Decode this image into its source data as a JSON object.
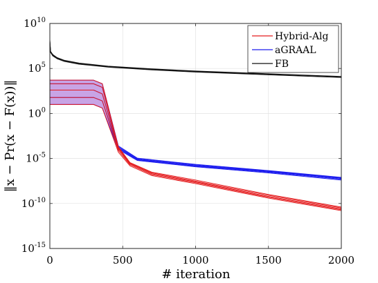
{
  "chart_data": {
    "type": "line",
    "title": "",
    "xlabel": "# iteration",
    "ylabel": "‖x − Pr(x − F(x))‖",
    "xlim": [
      0,
      2000
    ],
    "ylim": [
      1e-15,
      10000000000.0
    ],
    "yscale": "log",
    "grid": true,
    "legend_position": "top-right",
    "x_ticks": [
      0,
      500,
      1000,
      1500,
      2000
    ],
    "x_tick_labels": [
      "0",
      "500",
      "1000",
      "1500",
      "2000"
    ],
    "y_ticks": [
      1e-15,
      1e-10,
      1e-05,
      1,
      100000.0,
      10000000000.0
    ],
    "y_tick_labels": [
      {
        "base": "10",
        "exp": "-15"
      },
      {
        "base": "10",
        "exp": "-10"
      },
      {
        "base": "10",
        "exp": "-5"
      },
      {
        "base": "10",
        "exp": "0"
      },
      {
        "base": "10",
        "exp": "5"
      },
      {
        "base": "10",
        "exp": "10"
      }
    ],
    "series": [
      {
        "name": "Hybrid-Alg",
        "color": "#e41a1c",
        "runs": [
          [
            [
              0,
              10
            ],
            [
              300,
              10
            ],
            [
              360,
              4
            ],
            [
              470,
              5e-05
            ],
            [
              550,
              1.5e-06
            ],
            [
              700,
              1.25e-07
            ],
            [
              1000,
              1.6e-08
            ],
            [
              1500,
              4e-10
            ],
            [
              2000,
              1.6e-11
            ]
          ],
          [
            [
              0,
              60
            ],
            [
              300,
              60
            ],
            [
              360,
              25
            ],
            [
              470,
              8e-05
            ],
            [
              550,
              2e-06
            ],
            [
              700,
              1.6e-07
            ],
            [
              1000,
              2e-08
            ],
            [
              1500,
              5e-10
            ],
            [
              2000,
              2e-11
            ]
          ],
          [
            [
              0,
              400
            ],
            [
              300,
              400
            ],
            [
              360,
              150
            ],
            [
              470,
              0.00012
            ],
            [
              550,
              2.5e-06
            ],
            [
              700,
              2e-07
            ],
            [
              1000,
              2.5e-08
            ],
            [
              1500,
              6e-10
            ],
            [
              2000,
              2.5e-11
            ]
          ],
          [
            [
              0,
              2000
            ],
            [
              300,
              2000
            ],
            [
              360,
              800
            ],
            [
              470,
              0.00016
            ],
            [
              550,
              3e-06
            ],
            [
              700,
              2.5e-07
            ],
            [
              1000,
              3e-08
            ],
            [
              1500,
              8e-10
            ],
            [
              2000,
              3.2e-11
            ]
          ],
          [
            [
              0,
              5000
            ],
            [
              300,
              5000
            ],
            [
              360,
              2000
            ],
            [
              470,
              0.0002
            ],
            [
              550,
              3.5e-06
            ],
            [
              700,
              3e-07
            ],
            [
              1000,
              4e-08
            ],
            [
              1500,
              1e-09
            ],
            [
              2000,
              4e-11
            ]
          ]
        ]
      },
      {
        "name": "aGRAAL",
        "color": "#1a1aee",
        "runs": [
          [
            [
              0,
              10
            ],
            [
              300,
              10
            ],
            [
              360,
              4
            ],
            [
              470,
              0.0001
            ],
            [
              600,
              6e-06
            ],
            [
              1000,
              1.2e-06
            ],
            [
              1500,
              2.5e-07
            ],
            [
              2000,
              4e-08
            ]
          ],
          [
            [
              0,
              60
            ],
            [
              300,
              60
            ],
            [
              360,
              25
            ],
            [
              470,
              0.00013
            ],
            [
              600,
              7e-06
            ],
            [
              1000,
              1.4e-06
            ],
            [
              1500,
              3e-07
            ],
            [
              2000,
              5e-08
            ]
          ],
          [
            [
              0,
              400
            ],
            [
              300,
              400
            ],
            [
              360,
              150
            ],
            [
              470,
              0.00016
            ],
            [
              600,
              8e-06
            ],
            [
              1000,
              1.6e-06
            ],
            [
              1500,
              3.5e-07
            ],
            [
              2000,
              6e-08
            ]
          ],
          [
            [
              0,
              2000
            ],
            [
              300,
              2000
            ],
            [
              360,
              800
            ],
            [
              470,
              0.0002
            ],
            [
              600,
              9.5e-06
            ],
            [
              1000,
              1.9e-06
            ],
            [
              1500,
              4e-07
            ],
            [
              2000,
              7e-08
            ]
          ],
          [
            [
              0,
              5000
            ],
            [
              300,
              5000
            ],
            [
              360,
              2000
            ],
            [
              470,
              0.00025
            ],
            [
              600,
              1.1e-05
            ],
            [
              1000,
              2.2e-06
            ],
            [
              1500,
              4.5e-07
            ],
            [
              2000,
              8e-08
            ]
          ]
        ]
      },
      {
        "name": "FB",
        "color": "#111111",
        "runs": [
          [
            [
              0,
              100000000
            ],
            [
              5,
              6000000
            ],
            [
              20,
              2500000
            ],
            [
              50,
              1200000
            ],
            [
              100,
              600000
            ],
            [
              200,
              300000
            ],
            [
              400,
              140000
            ],
            [
              700,
              70000
            ],
            [
              1000,
              40000
            ],
            [
              1500,
              20000
            ],
            [
              2000,
              10000
            ]
          ],
          [
            [
              0,
              120000000
            ],
            [
              5,
              7000000
            ],
            [
              20,
              3000000
            ],
            [
              50,
              1400000
            ],
            [
              100,
              700000
            ],
            [
              200,
              350000
            ],
            [
              400,
              160000
            ],
            [
              700,
              80000
            ],
            [
              1000,
              46000
            ],
            [
              1500,
              23000
            ],
            [
              2000,
              12000
            ]
          ],
          [
            [
              0,
              150000000
            ],
            [
              5,
              8000000
            ],
            [
              20,
              3500000
            ],
            [
              50,
              1600000
            ],
            [
              100,
              800000
            ],
            [
              200,
              400000
            ],
            [
              400,
              180000
            ],
            [
              700,
              90000
            ],
            [
              1000,
              52000
            ],
            [
              1500,
              26000
            ],
            [
              2000,
              13000
            ]
          ]
        ]
      }
    ],
    "shaded_band": {
      "series": "Hybrid-Alg / aGRAAL",
      "fill_color": "#9b59d0",
      "lower": [
        [
          0,
          10
        ],
        [
          300,
          10
        ],
        [
          360,
          4
        ],
        [
          470,
          5e-05
        ]
      ],
      "upper": [
        [
          0,
          5000
        ],
        [
          300,
          5000
        ],
        [
          360,
          2000
        ],
        [
          470,
          0.00025
        ]
      ]
    }
  }
}
